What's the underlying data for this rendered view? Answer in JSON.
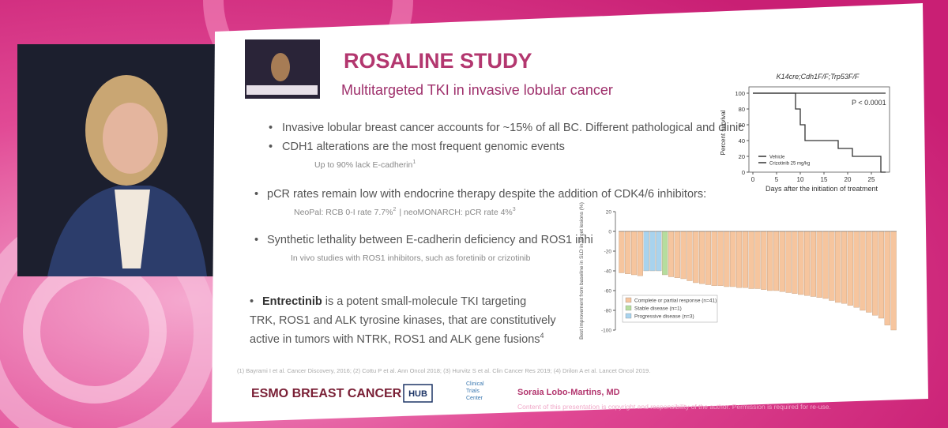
{
  "slide": {
    "title": "ROSALINE STUDY",
    "subtitle": "Multitargeted TKI in invasive lobular cancer",
    "bullets": [
      {
        "text": "Invasive lobular breast cancer accounts for ~15% of all BC. Different pathological and clinic"
      },
      {
        "text": "CDH1 alterations are the most frequent genomic events",
        "sub": "Up to 90% lack E-cadherin",
        "sub_sup": "1"
      },
      {
        "text": "pCR rates remain low with endocrine therapy despite the addition of CDK4/6 inhibitors:",
        "sub": "NeoPal: RCB 0-I rate 7.7%",
        "sub_sup": "2",
        "sub_2": "| neoMONARCH: pCR rate 4%",
        "sub_2_sup": "3"
      },
      {
        "text": "Synthetic lethality between E-cadherin deficiency and ROS1 inhi",
        "sub": "In vivo studies with ROS1 inhibitors, such as foretinib or crizotinib"
      },
      {
        "bold": "Entrectinib",
        "lines": [
          "is a potent small-molecule TKI targeting",
          "TRK, ROS1 and ALK tyrosine kinases, that are constitutively",
          "active in tumors with NTRK, ROS1 and ALK gene fusions"
        ],
        "sup": "4"
      }
    ],
    "references": "(1) Bayrami I et al. Cancer Discovery, 2016; (2) Cottu P et al. Ann Oncol 2018; (3) Hurvitz S et al. Clin Cancer Res 2019; (4) Drilon A et al. Lancet Oncol 2019.",
    "footer": {
      "event": "ESMO BREAST CANCER",
      "logo": "HUB",
      "center": [
        "Clinical",
        "Trials",
        "Center"
      ],
      "author": "Soraia Lobo-Martins, MD",
      "copyright": "Content of this presentation is copyright and responsibility of the author. Permission is required for re-use."
    }
  },
  "chart_data": [
    {
      "type": "step",
      "title": "K14cre;Cdh1F/F;Trp53F/F",
      "ylabel": "Percent survival",
      "xlabel": "Days after the initiation of treatment",
      "annotation": "P < 0.0001",
      "xlim": [
        0,
        28
      ],
      "ylim": [
        0,
        100
      ],
      "xticks": [
        0,
        5,
        10,
        15,
        20,
        25
      ],
      "yticks": [
        0,
        20,
        40,
        60,
        80,
        100
      ],
      "series": [
        {
          "name": "Vehicle",
          "color": "#333333",
          "x": [
            0,
            28
          ],
          "values": [
            100,
            100
          ]
        },
        {
          "name": "Crizotinib 25 mg/kg",
          "color": "#333333",
          "x": [
            0,
            9,
            10,
            11,
            18,
            21,
            27
          ],
          "values": [
            100,
            80,
            60,
            40,
            30,
            20,
            0
          ]
        }
      ]
    },
    {
      "type": "bar",
      "ylabel": "Best improvement from baseline in SLD in target lesions (%)",
      "ylim": [
        -100,
        20
      ],
      "yticks": [
        -100,
        -80,
        -60,
        -40,
        -20,
        0,
        20
      ],
      "series": [
        {
          "name": "Complete or partial response (n=41)",
          "color": "#f6c59e",
          "values": [
            -42,
            -43,
            -44,
            -45,
            null,
            null,
            null,
            null,
            -46,
            -47,
            -48,
            -50,
            -52,
            -53,
            -54,
            -55,
            -55,
            -56,
            -56,
            -57,
            -57,
            -58,
            -58,
            -59,
            -60,
            -60,
            -61,
            -62,
            -63,
            -64,
            -65,
            -66,
            -67,
            -68,
            -70,
            -72,
            -73,
            -75,
            -77,
            -80,
            -82,
            -85,
            -88,
            -95,
            -100
          ]
        },
        {
          "name": "Stable disease (n=1)",
          "color": "#b5dd9e",
          "values": [
            null,
            null,
            null,
            null,
            null,
            null,
            null,
            -44,
            null,
            null,
            null,
            null,
            null,
            null,
            null,
            null,
            null,
            null,
            null,
            null,
            null,
            null,
            null,
            null,
            null,
            null,
            null,
            null,
            null,
            null,
            null,
            null,
            null,
            null,
            null,
            null,
            null,
            null,
            null,
            null,
            null,
            null,
            null,
            null,
            null
          ]
        },
        {
          "name": "Progressive disease (n=3)",
          "color": "#a8d3ee",
          "values": [
            null,
            null,
            null,
            null,
            -40,
            -40,
            -40,
            null,
            null,
            null,
            null,
            null,
            null,
            null,
            null,
            null,
            null,
            null,
            null,
            null,
            null,
            null,
            null,
            null,
            null,
            null,
            null,
            null,
            null,
            null,
            null,
            null,
            null,
            null,
            null,
            null,
            null,
            null,
            null,
            null,
            null,
            null,
            null,
            null,
            null
          ]
        }
      ]
    }
  ]
}
